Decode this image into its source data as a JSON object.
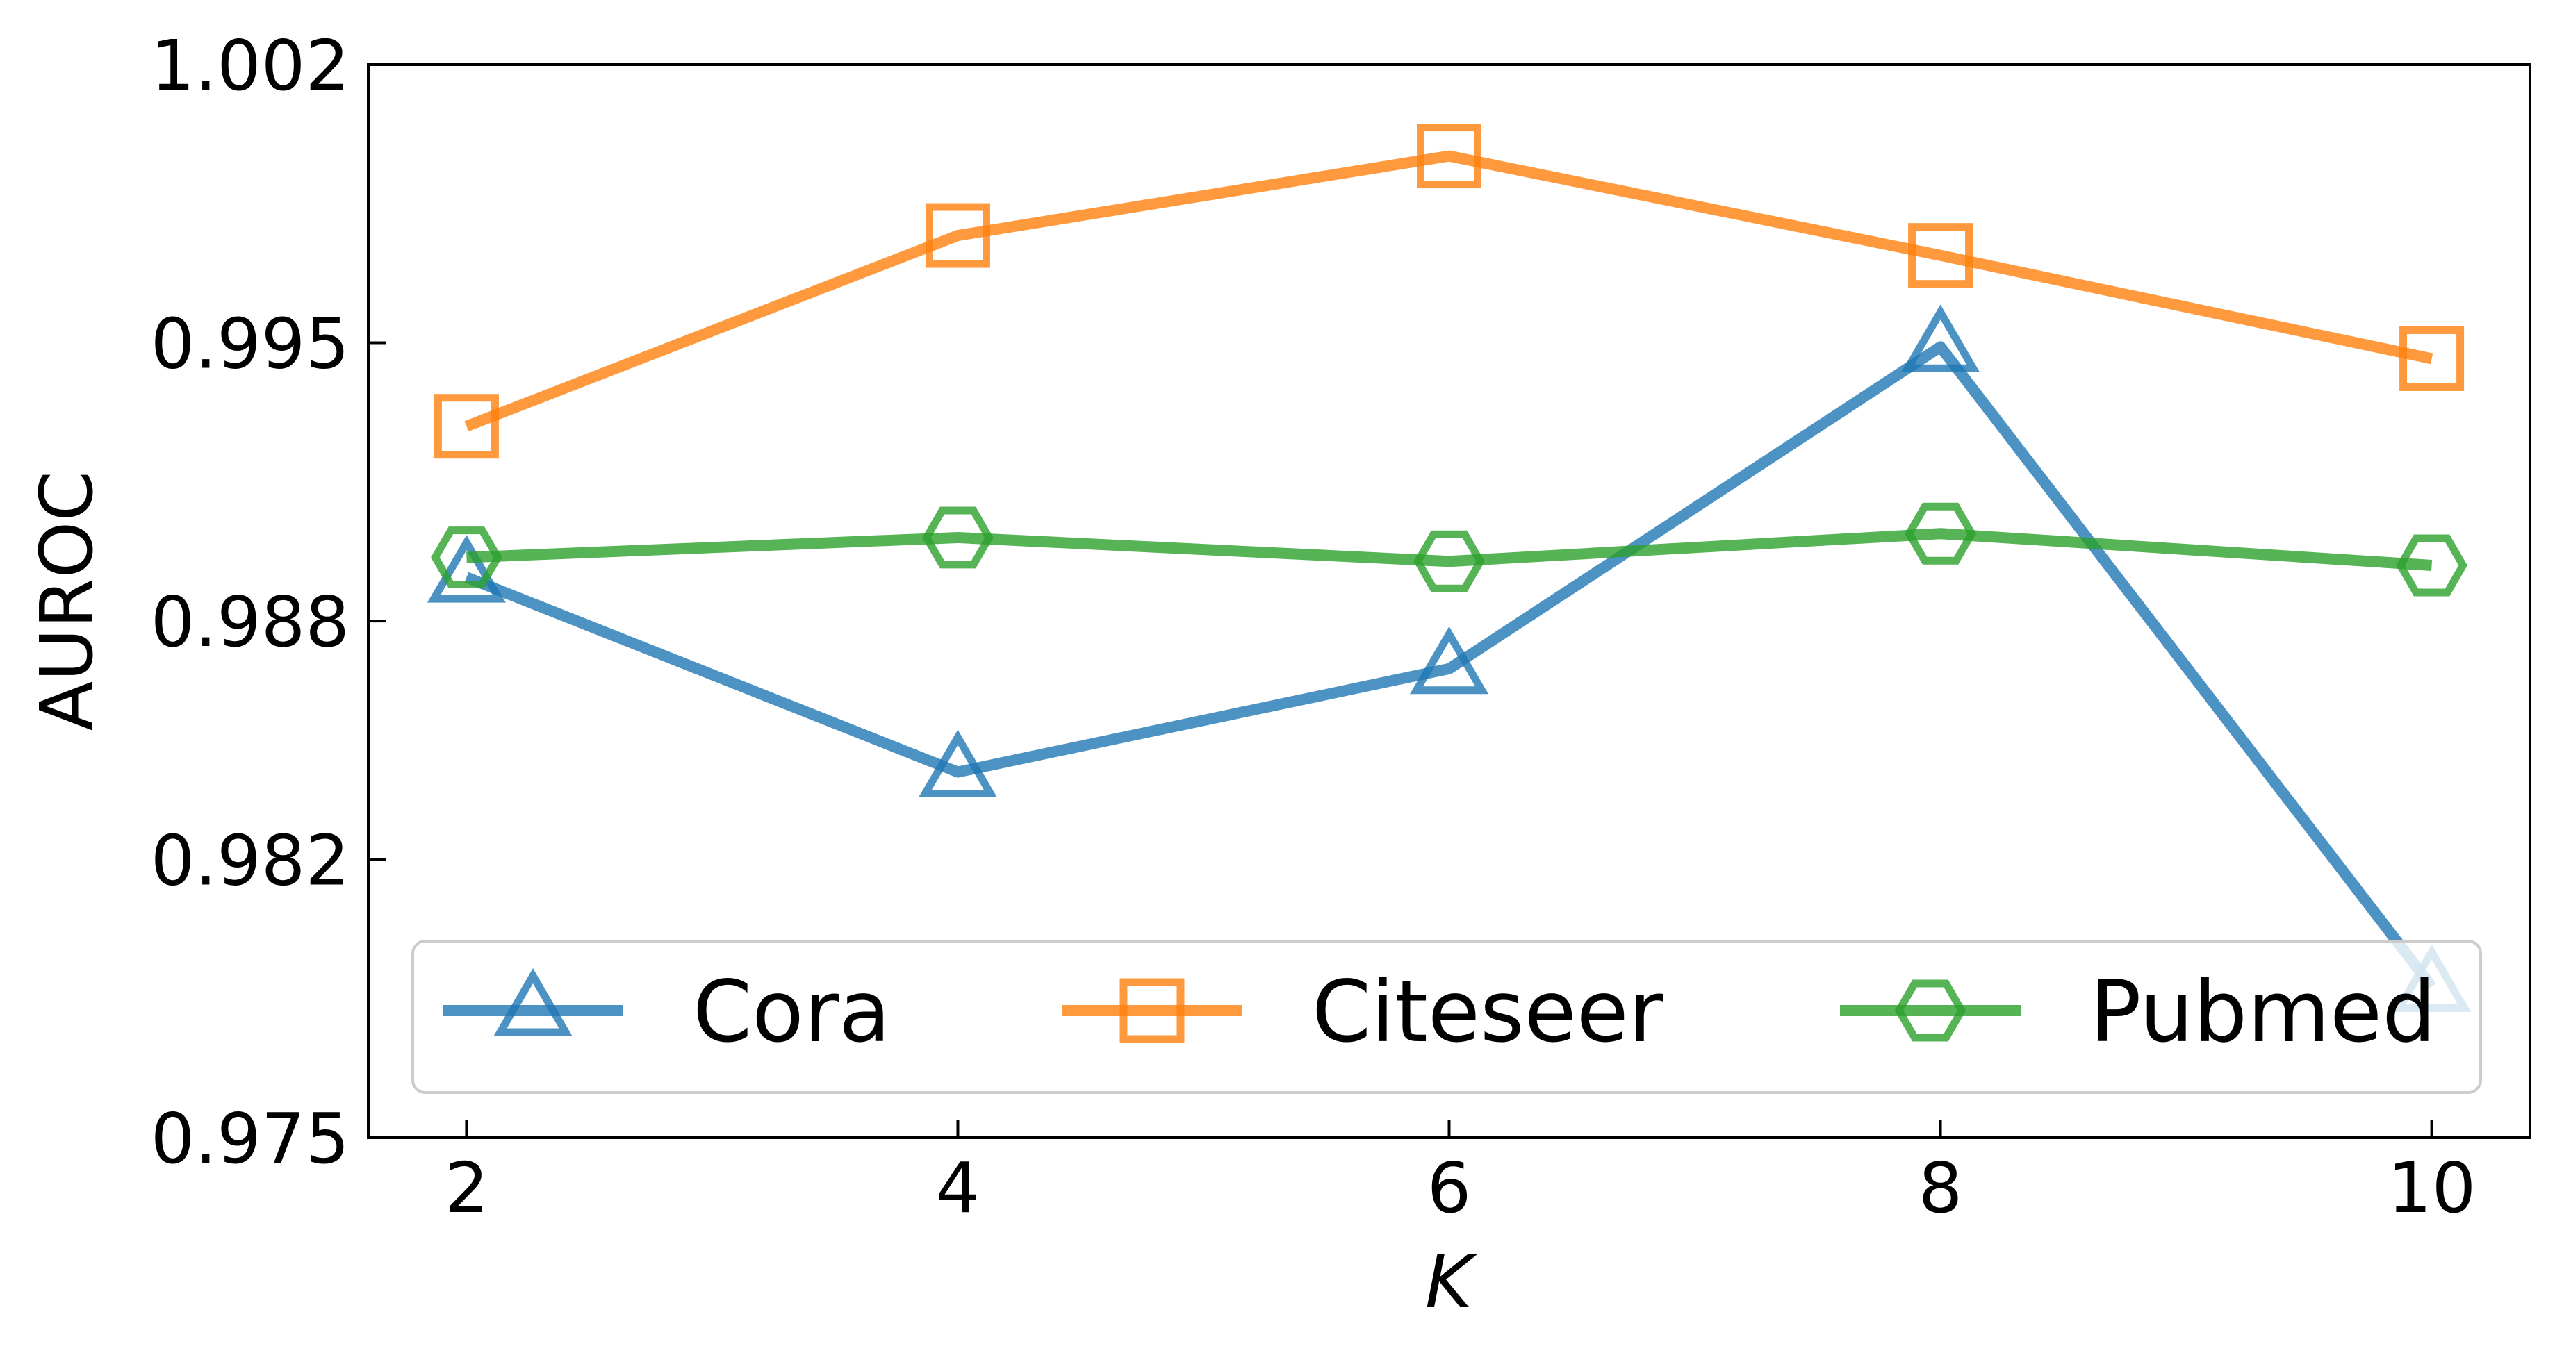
{
  "chart_data": {
    "type": "line",
    "title": "",
    "xlabel": "K",
    "ylabel": "AUROC",
    "x": [
      2,
      4,
      6,
      8,
      10
    ],
    "xticks": [
      "2",
      "4",
      "6",
      "8",
      "10"
    ],
    "yticks": [
      "0.975",
      "0.982",
      "0.988",
      "0.995",
      "1.002"
    ],
    "xlim": [
      1.6,
      10.4
    ],
    "ylim": [
      0.975,
      1.002
    ],
    "grid": false,
    "legend_position": "lower-center",
    "series": [
      {
        "name": "Cora",
        "color": "#1f77b4",
        "marker": "triangle",
        "values": [
          0.9891,
          0.9842,
          0.9868,
          0.9949,
          0.9788
        ]
      },
      {
        "name": "Citeseer",
        "color": "#ff7f0e",
        "marker": "square",
        "values": [
          0.9929,
          0.9977,
          0.9997,
          0.9972,
          0.9946
        ]
      },
      {
        "name": "Pubmed",
        "color": "#2ca02c",
        "marker": "hexagon",
        "values": [
          0.9896,
          0.9901,
          0.9895,
          0.9902,
          0.9894
        ]
      }
    ]
  }
}
